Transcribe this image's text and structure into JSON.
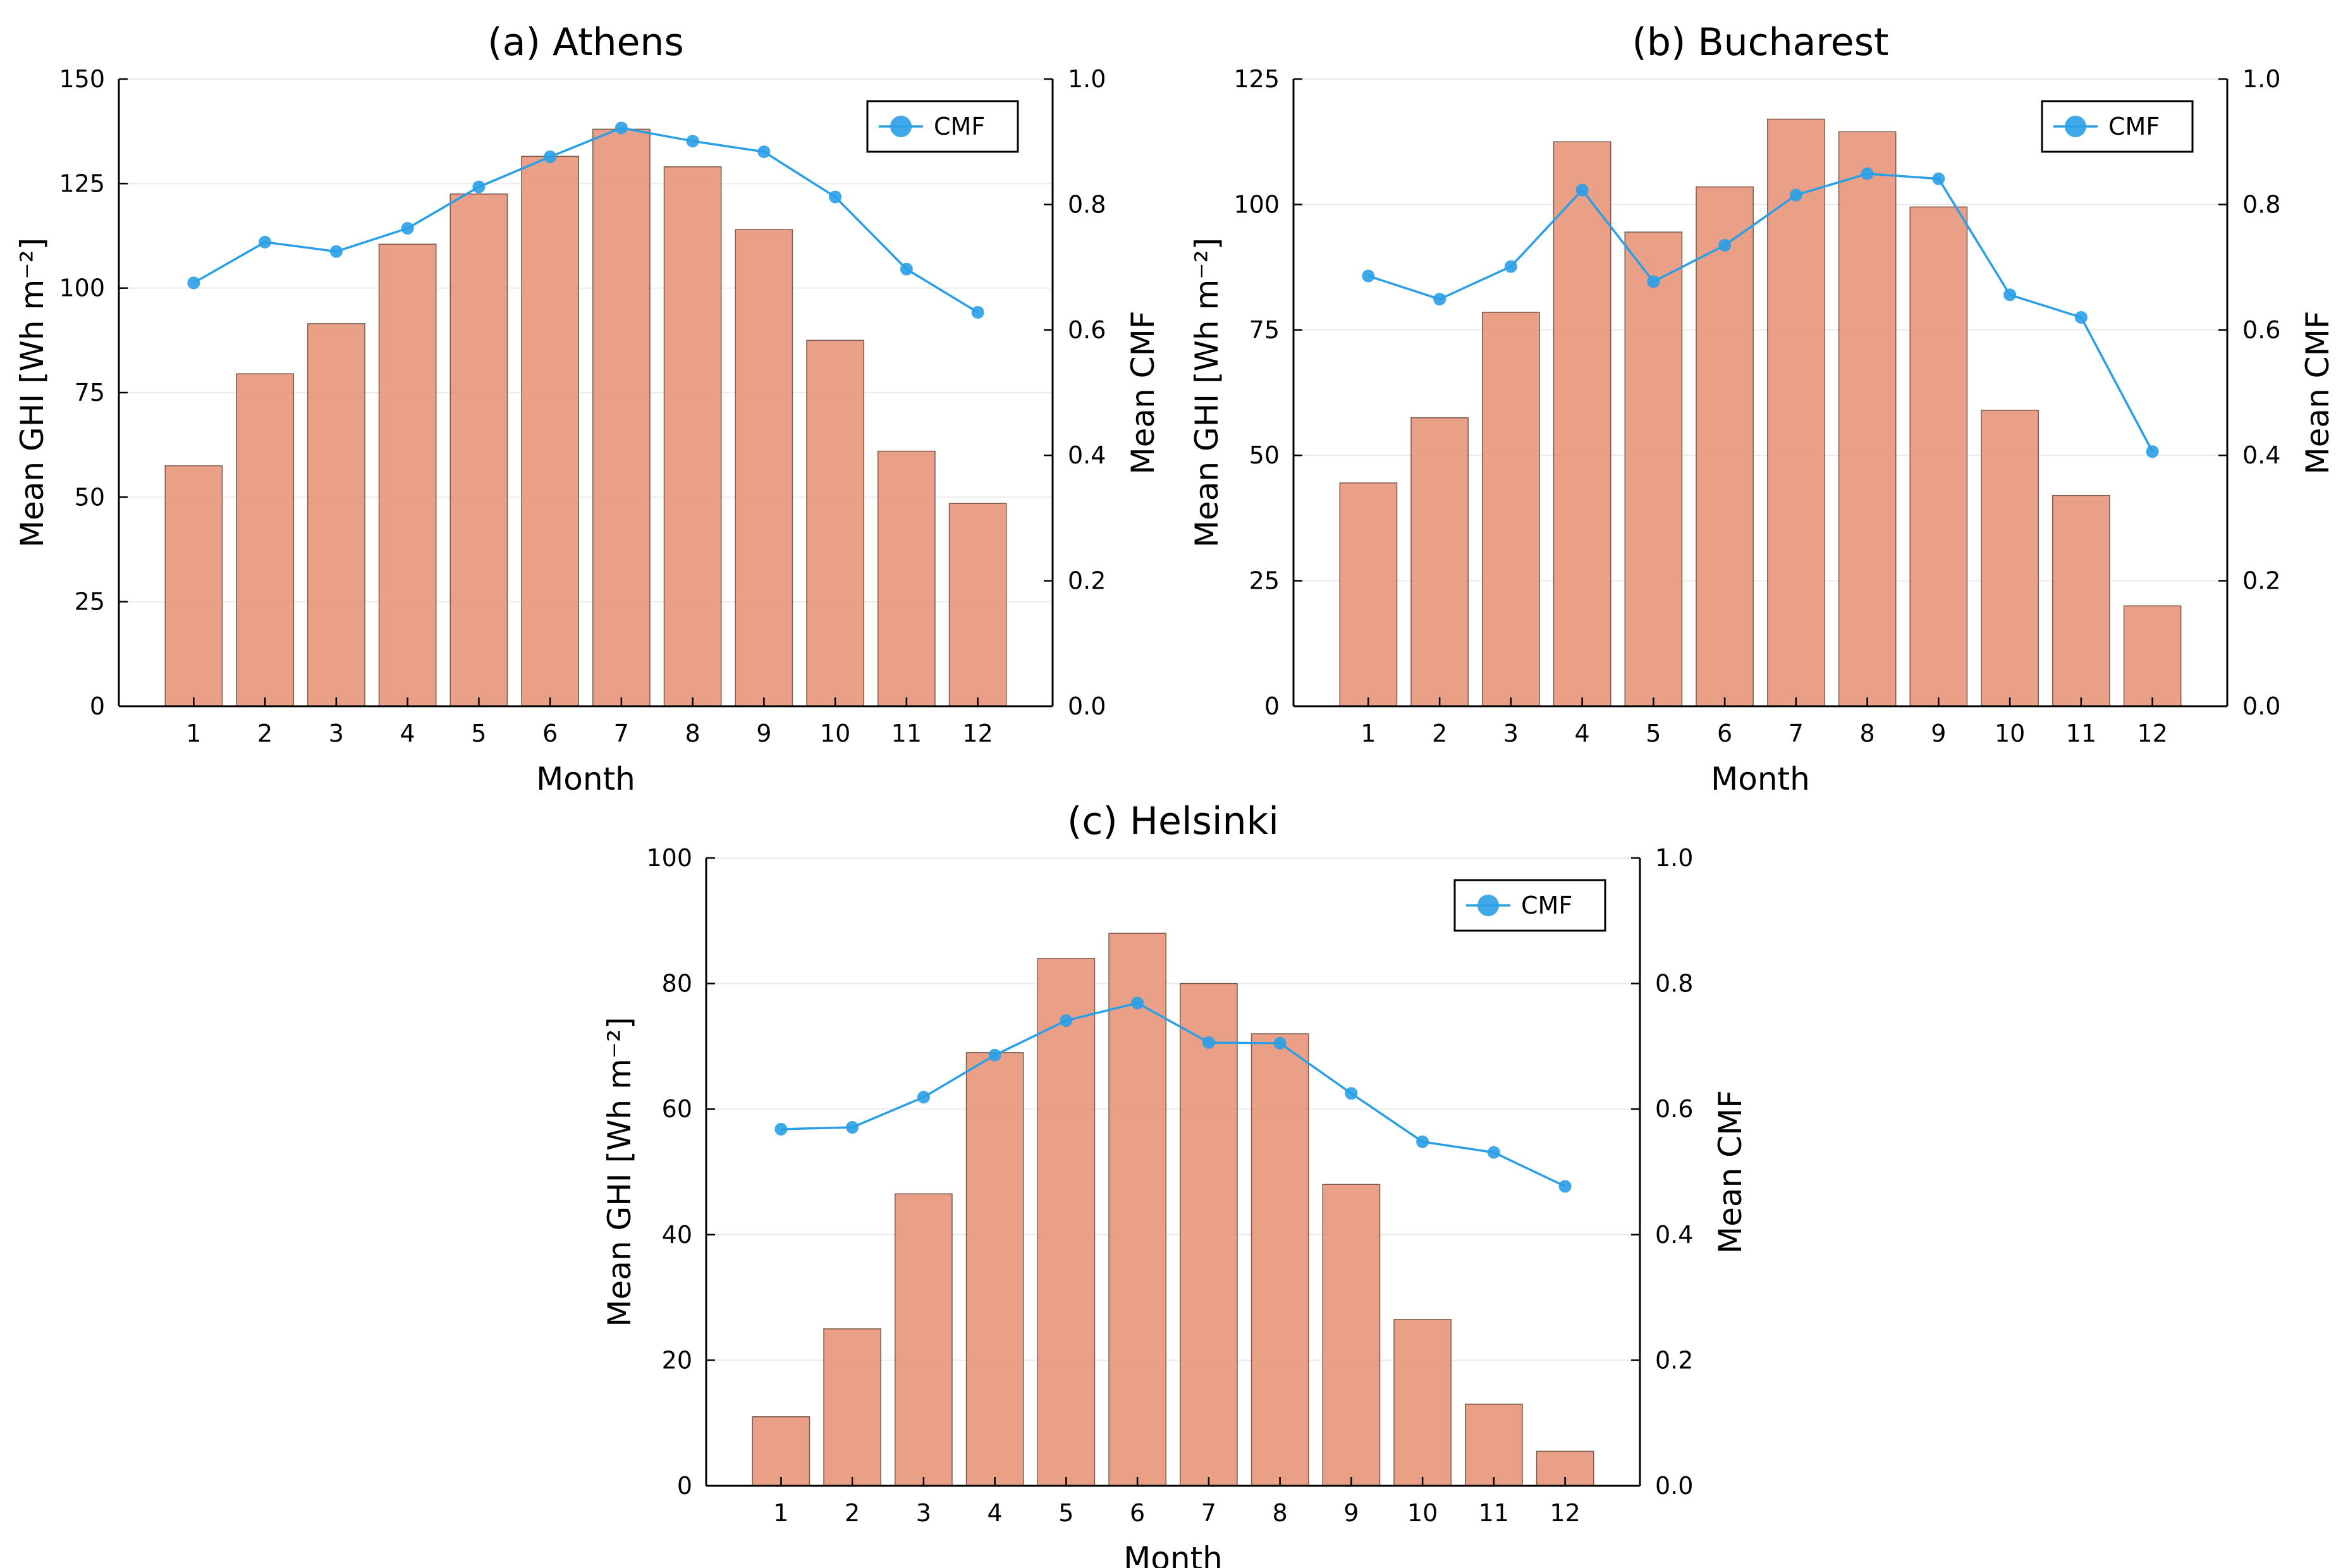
{
  "chart_data": [
    {
      "id": "athens",
      "type": "bar+line",
      "title": "(a) Athens",
      "xlabel": "Month",
      "ylabel": "Mean GHI [Wh m⁻²]",
      "y2label": "Mean CMF",
      "categories": [
        "1",
        "2",
        "3",
        "4",
        "5",
        "6",
        "7",
        "8",
        "9",
        "10",
        "11",
        "12"
      ],
      "ylim": [
        0,
        150
      ],
      "yticks": [
        0,
        25,
        50,
        75,
        100,
        125,
        150
      ],
      "y2lim": [
        0,
        1.0
      ],
      "y2ticks": [
        "0.0",
        "0.2",
        "0.4",
        "0.6",
        "0.8",
        "1.0"
      ],
      "grid": true,
      "legend_position": "top-right",
      "series": [
        {
          "name": "GHI",
          "type": "bar",
          "axis": "left",
          "color": "#e8957a",
          "values": [
            57.5,
            79.5,
            91.5,
            110.5,
            122.5,
            131.5,
            138.0,
            129.0,
            114.0,
            87.5,
            61.0,
            48.5
          ]
        },
        {
          "name": "CMF",
          "type": "line",
          "axis": "right",
          "color": "#2a9fe6",
          "values": [
            0.675,
            0.74,
            0.725,
            0.762,
            0.828,
            0.876,
            0.922,
            0.901,
            0.884,
            0.812,
            0.697,
            0.628
          ]
        }
      ]
    },
    {
      "id": "bucharest",
      "type": "bar+line",
      "title": "(b) Bucharest",
      "xlabel": "Month",
      "ylabel": "Mean GHI [Wh m⁻²]",
      "y2label": "Mean CMF",
      "categories": [
        "1",
        "2",
        "3",
        "4",
        "5",
        "6",
        "7",
        "8",
        "9",
        "10",
        "11",
        "12"
      ],
      "ylim": [
        0,
        125
      ],
      "yticks": [
        0,
        25,
        50,
        75,
        100,
        125
      ],
      "y2lim": [
        0,
        1.0
      ],
      "y2ticks": [
        "0.0",
        "0.2",
        "0.4",
        "0.6",
        "0.8",
        "1.0"
      ],
      "grid": true,
      "legend_position": "top-right",
      "series": [
        {
          "name": "GHI",
          "type": "bar",
          "axis": "left",
          "color": "#e8957a",
          "values": [
            44.5,
            57.5,
            78.5,
            112.5,
            94.5,
            103.5,
            117.0,
            114.5,
            99.5,
            59.0,
            42.0,
            20.0
          ]
        },
        {
          "name": "CMF",
          "type": "line",
          "axis": "right",
          "color": "#2a9fe6",
          "values": [
            0.686,
            0.649,
            0.701,
            0.823,
            0.677,
            0.735,
            0.815,
            0.849,
            0.841,
            0.656,
            0.62,
            0.406
          ]
        }
      ]
    },
    {
      "id": "helsinki",
      "type": "bar+line",
      "title": "(c) Helsinki",
      "xlabel": "Month",
      "ylabel": "Mean GHI [Wh m⁻²]",
      "y2label": "Mean CMF",
      "categories": [
        "1",
        "2",
        "3",
        "4",
        "5",
        "6",
        "7",
        "8",
        "9",
        "10",
        "11",
        "12"
      ],
      "ylim": [
        0,
        100
      ],
      "yticks": [
        0,
        20,
        40,
        60,
        80,
        100
      ],
      "y2lim": [
        0,
        1.0
      ],
      "y2ticks": [
        "0.0",
        "0.2",
        "0.4",
        "0.6",
        "0.8",
        "1.0"
      ],
      "grid": true,
      "legend_position": "top-right",
      "series": [
        {
          "name": "GHI",
          "type": "bar",
          "axis": "left",
          "color": "#e8957a",
          "values": [
            11.0,
            25.0,
            46.5,
            69.0,
            84.0,
            88.0,
            80.0,
            72.0,
            48.0,
            26.5,
            13.0,
            5.5
          ]
        },
        {
          "name": "CMF",
          "type": "line",
          "axis": "right",
          "color": "#2a9fe6",
          "values": [
            0.568,
            0.571,
            0.619,
            0.686,
            0.741,
            0.769,
            0.706,
            0.705,
            0.625,
            0.548,
            0.531,
            0.477
          ]
        }
      ]
    }
  ]
}
